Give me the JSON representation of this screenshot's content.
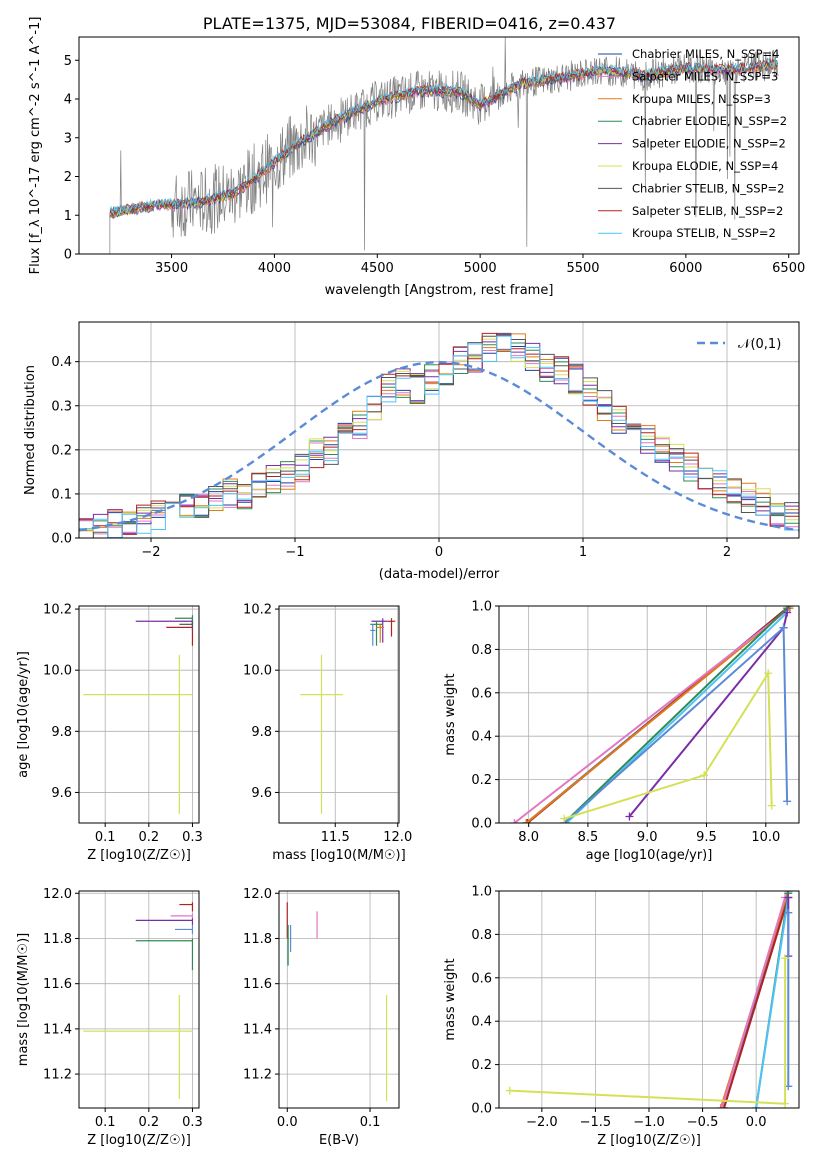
{
  "page_title": "PLATE=1375, MJD=53084, FIBERID=0416, z=0.437",
  "legend_models": [
    {
      "name": "Chabrier MILES, N_SSP=4",
      "color": "#1f3fa0"
    },
    {
      "name": "Salpeter MILES, N_SSP=3",
      "color": "#e377c2"
    },
    {
      "name": "Kroupa MILES, N_SSP=3",
      "color": "#e07b1a"
    },
    {
      "name": "Chabrier ELODIE, N_SSP=2",
      "color": "#2e8b57"
    },
    {
      "name": "Salpeter ELODIE, N_SSP=2",
      "color": "#7b2da6"
    },
    {
      "name": "Kroupa ELODIE, N_SSP=4",
      "color": "#d4e157"
    },
    {
      "name": "Chabrier STELIB, N_SSP=2",
      "color": "#555555"
    },
    {
      "name": "Salpeter STELIB, N_SSP=2",
      "color": "#b22222"
    },
    {
      "name": "Kroupa STELIB, N_SSP=2",
      "color": "#4fc3f7"
    }
  ],
  "chart_data": [
    {
      "id": "spectrum",
      "type": "line",
      "title": "PLATE=1375, MJD=53084, FIBERID=0416, z=0.437",
      "xlabel": "wavelength [Angstrom, rest frame]",
      "ylabel": "Flux [f_λ 10^-17 erg cm^-2 s^-1 A^-1]",
      "xlim": [
        3050,
        6550
      ],
      "ylim": [
        0,
        5.6
      ],
      "xticks": [
        "3500",
        "4000",
        "4500",
        "5000",
        "5500",
        "6000",
        "6500"
      ],
      "yticks": [
        "0",
        "1",
        "2",
        "3",
        "4",
        "5"
      ],
      "data_color": "#808080",
      "model_envelope": {
        "x": [
          3200,
          3400,
          3550,
          3650,
          3800,
          3950,
          4100,
          4300,
          4500,
          4700,
          4900,
          5000,
          5200,
          5400,
          5600,
          5800,
          6000,
          6200,
          6450
        ],
        "y": [
          1.05,
          1.25,
          1.3,
          1.35,
          1.55,
          2.15,
          2.8,
          3.45,
          3.95,
          4.2,
          4.2,
          3.85,
          4.4,
          4.55,
          4.75,
          4.6,
          4.8,
          4.75,
          4.9
        ]
      },
      "grid": false,
      "legend": "top-right"
    },
    {
      "id": "residuals",
      "type": "histogram",
      "xlabel": "(data-model)/error",
      "ylabel": "Normed distribution",
      "xlim": [
        -2.5,
        2.5
      ],
      "ylim": [
        0,
        0.49
      ],
      "xticks": [
        "−2",
        "−1",
        "0",
        "1",
        "2"
      ],
      "yticks": [
        "0.0",
        "0.1",
        "0.2",
        "0.3",
        "0.4"
      ],
      "bin_width": 0.1,
      "bin_start": -2.5,
      "base_heights": [
        0.01,
        0.02,
        0.03,
        0.04,
        0.04,
        0.05,
        0.06,
        0.07,
        0.08,
        0.09,
        0.1,
        0.1,
        0.12,
        0.13,
        0.14,
        0.16,
        0.19,
        0.2,
        0.23,
        0.26,
        0.3,
        0.34,
        0.35,
        0.34,
        0.36,
        0.37,
        0.4,
        0.41,
        0.43,
        0.44,
        0.43,
        0.41,
        0.39,
        0.38,
        0.36,
        0.33,
        0.3,
        0.27,
        0.25,
        0.22,
        0.2,
        0.18,
        0.16,
        0.14,
        0.12,
        0.1,
        0.09,
        0.08,
        0.06,
        0.05
      ],
      "reference_curve": {
        "name": "𝒩(0,1)",
        "color": "#5b8bd6",
        "style": "dashed"
      },
      "grid": true,
      "legend": "top-right"
    },
    {
      "id": "age-vs-Z",
      "type": "errorbar",
      "xlabel": "Z [log10(Z/Z☉)]",
      "ylabel": "age [log10(age/yr)]",
      "xlim": [
        0.04,
        0.315
      ],
      "ylim": [
        9.5,
        10.21
      ],
      "xticks": [
        "0.1",
        "0.2",
        "0.3"
      ],
      "xtick_values": [
        0.1,
        0.2,
        0.3
      ],
      "yticks": [
        "9.6",
        "9.8",
        "10.0",
        "10.2"
      ],
      "ytick_values": [
        9.6,
        9.8,
        10.0,
        10.2
      ],
      "points": [
        {
          "x": 0.27,
          "y": 9.92,
          "xerr": [
            0.22,
            0.03
          ],
          "yerr": [
            0.39,
            0.13
          ],
          "color": "#d4e157"
        },
        {
          "x": 0.3,
          "y": 10.16,
          "xerr": [
            0.13,
            0.0
          ],
          "yerr": [
            0.01,
            0.01
          ],
          "color": "#7b2da6"
        },
        {
          "x": 0.3,
          "y": 10.14,
          "xerr": [
            0.06,
            0.0
          ],
          "yerr": [
            0.06,
            0.02
          ],
          "color": "#b22222"
        },
        {
          "x": 0.3,
          "y": 10.17,
          "xerr": [
            0.04,
            0.0
          ],
          "yerr": [
            0.02,
            0.01
          ],
          "color": "#2e8b57"
        },
        {
          "x": 0.3,
          "y": 10.15,
          "xerr": [
            0.03,
            0.0
          ],
          "yerr": [
            0.02,
            0.01
          ],
          "color": "#555555"
        }
      ]
    },
    {
      "id": "age-vs-mass",
      "type": "errorbar",
      "xlabel": "mass [log10(M/M☉)]",
      "ylabel": "",
      "xlim": [
        11.05,
        12.01
      ],
      "ylim": [
        9.5,
        10.21
      ],
      "xticks": [
        "11.5",
        "12.0"
      ],
      "xtick_values": [
        11.5,
        12.0
      ],
      "yticks": [
        "9.6",
        "9.8",
        "10.0",
        "10.2"
      ],
      "ytick_values": [
        9.6,
        9.8,
        10.0,
        10.2
      ],
      "points": [
        {
          "x": 11.39,
          "y": 9.92,
          "xerr": [
            0.17,
            0.17
          ],
          "yerr": [
            0.39,
            0.13
          ],
          "color": "#d4e157"
        },
        {
          "x": 11.88,
          "y": 10.16,
          "xerr": [
            0.09,
            0.04
          ],
          "yerr": [
            0.07,
            0.01
          ],
          "color": "#7b2da6"
        },
        {
          "x": 11.95,
          "y": 10.16,
          "xerr": [
            0.03,
            0.03
          ],
          "yerr": [
            0.05,
            0.01
          ],
          "color": "#b22222"
        },
        {
          "x": 11.83,
          "y": 10.15,
          "xerr": [
            0.05,
            0.05
          ],
          "yerr": [
            0.07,
            0.01
          ],
          "color": "#2e8b57"
        },
        {
          "x": 11.86,
          "y": 10.14,
          "xerr": [
            0.03,
            0.03
          ],
          "yerr": [
            0.05,
            0.01
          ],
          "color": "#e07b1a"
        },
        {
          "x": 11.8,
          "y": 10.13,
          "xerr": [
            0.02,
            0.02
          ],
          "yerr": [
            0.05,
            0.02
          ],
          "color": "#5b8bd6"
        }
      ]
    },
    {
      "id": "weight-vs-age",
      "type": "line",
      "xlabel": "age [log10(age/yr)]",
      "ylabel": "mass weight",
      "xlim": [
        7.75,
        10.28
      ],
      "ylim": [
        0,
        1.0
      ],
      "xticks": [
        "8.0",
        "8.5",
        "9.0",
        "9.5",
        "10.0"
      ],
      "xtick_values": [
        8.0,
        8.5,
        9.0,
        9.5,
        10.0
      ],
      "yticks": [
        "0.0",
        "0.2",
        "0.4",
        "0.6",
        "0.8",
        "1.0"
      ],
      "ytick_values": [
        0.0,
        0.2,
        0.4,
        0.6,
        0.8,
        1.0
      ],
      "series": [
        {
          "color": "#1f77b4",
          "x": [
            7.98,
            10.2
          ],
          "y": [
            0.0,
            1.0
          ]
        },
        {
          "color": "#b22222",
          "x": [
            7.99,
            10.2
          ],
          "y": [
            0.0,
            1.0
          ]
        },
        {
          "color": "#e07b1a",
          "x": [
            7.98,
            10.2
          ],
          "y": [
            0.0,
            0.99
          ]
        },
        {
          "color": "#e377c2",
          "x": [
            7.88,
            10.18
          ],
          "y": [
            0.0,
            0.98
          ]
        },
        {
          "color": "#2e8b57",
          "x": [
            8.3,
            10.18
          ],
          "y": [
            0.0,
            0.99
          ]
        },
        {
          "color": "#4fc3f7",
          "x": [
            8.32,
            10.18
          ],
          "y": [
            0.0,
            0.97
          ]
        },
        {
          "color": "#7b2da6",
          "x": [
            8.85,
            10.15,
            10.18
          ],
          "y": [
            0.03,
            0.9,
            0.97
          ]
        },
        {
          "color": "#5b8bd6",
          "x": [
            8.3,
            10.15,
            10.18
          ],
          "y": [
            0.0,
            0.9,
            0.1
          ]
        },
        {
          "color": "#d4e157",
          "x": [
            8.3,
            9.48,
            10.02,
            10.05
          ],
          "y": [
            0.02,
            0.22,
            0.69,
            0.08
          ]
        }
      ]
    },
    {
      "id": "mass-vs-Z",
      "type": "errorbar",
      "xlabel": "Z [log10(Z/Z☉)]",
      "ylabel": "mass [log10(M/M☉)]",
      "xlim": [
        0.04,
        0.315
      ],
      "ylim": [
        11.05,
        12.01
      ],
      "xticks": [
        "0.1",
        "0.2",
        "0.3"
      ],
      "xtick_values": [
        0.1,
        0.2,
        0.3
      ],
      "yticks": [
        "11.2",
        "11.4",
        "11.6",
        "11.8",
        "12.0"
      ],
      "ytick_values": [
        11.2,
        11.4,
        11.6,
        11.8,
        12.0
      ],
      "points": [
        {
          "x": 0.27,
          "y": 11.39,
          "xerr": [
            0.22,
            0.03
          ],
          "yerr": [
            0.3,
            0.16
          ],
          "color": "#d4e157"
        },
        {
          "x": 0.3,
          "y": 11.88,
          "xerr": [
            0.13,
            0.0
          ],
          "yerr": [
            0.02,
            0.01
          ],
          "color": "#7b2da6"
        },
        {
          "x": 0.3,
          "y": 11.95,
          "xerr": [
            0.03,
            0.0
          ],
          "yerr": [
            0.03,
            0.01
          ],
          "color": "#b22222"
        },
        {
          "x": 0.3,
          "y": 11.79,
          "xerr": [
            0.13,
            0.0
          ],
          "yerr": [
            0.13,
            0.01
          ],
          "color": "#2e8b57"
        },
        {
          "x": 0.3,
          "y": 11.84,
          "xerr": [
            0.04,
            0.0
          ],
          "yerr": [
            0.02,
            0.02
          ],
          "color": "#5b8bd6"
        },
        {
          "x": 0.3,
          "y": 11.9,
          "xerr": [
            0.05,
            0.0
          ],
          "yerr": [
            0.01,
            0.01
          ],
          "color": "#e377c2"
        }
      ]
    },
    {
      "id": "mass-vs-EBV",
      "type": "errorbar",
      "xlabel": "E(B-V)",
      "ylabel": "",
      "xlim": [
        -0.01,
        0.135
      ],
      "ylim": [
        11.05,
        12.01
      ],
      "xticks": [
        "0.0",
        "0.1"
      ],
      "xtick_values": [
        0.0,
        0.1
      ],
      "yticks": [
        "11.2",
        "11.4",
        "11.6",
        "11.8",
        "12.0"
      ],
      "ytick_values": [
        11.2,
        11.4,
        11.6,
        11.8,
        12.0
      ],
      "points": [
        {
          "x": 0.12,
          "y": 11.3,
          "xerr": [
            0,
            0
          ],
          "yerr": [
            0.22,
            0.25
          ],
          "color": "#d4e157"
        },
        {
          "x": 0.0,
          "y": 11.88,
          "xerr": [
            0,
            0
          ],
          "yerr": [
            0.08,
            0.08
          ],
          "color": "#b22222"
        },
        {
          "x": 0.001,
          "y": 11.8,
          "xerr": [
            0,
            0
          ],
          "yerr": [
            0.12,
            0.06
          ],
          "color": "#2e8b57"
        },
        {
          "x": 0.004,
          "y": 11.8,
          "xerr": [
            0,
            0
          ],
          "yerr": [
            0.06,
            0.06
          ],
          "color": "#5b8bd6"
        },
        {
          "x": 0.036,
          "y": 11.86,
          "xerr": [
            0,
            0
          ],
          "yerr": [
            0.06,
            0.06
          ],
          "color": "#e377c2"
        }
      ]
    },
    {
      "id": "weight-vs-Z",
      "type": "line",
      "xlabel": "Z [log10(Z/Z☉)]",
      "ylabel": "mass weight",
      "xlim": [
        -2.4,
        0.4
      ],
      "ylim": [
        0,
        1.0
      ],
      "xticks": [
        "−2.0",
        "−1.5",
        "−1.0",
        "−0.5",
        "0.0"
      ],
      "xtick_values": [
        -2.0,
        -1.5,
        -1.0,
        -0.5,
        0.0
      ],
      "yticks": [
        "0.0",
        "0.2",
        "0.4",
        "0.6",
        "0.8",
        "1.0"
      ],
      "ytick_values": [
        0.0,
        0.2,
        0.4,
        0.6,
        0.8,
        1.0
      ],
      "series": [
        {
          "color": "#1f77b4",
          "x": [
            -0.3,
            0.3
          ],
          "y": [
            0.0,
            1.0
          ]
        },
        {
          "color": "#e07b1a",
          "x": [
            -0.33,
            0.3
          ],
          "y": [
            0.0,
            1.0
          ]
        },
        {
          "color": "#b22222",
          "x": [
            -0.3,
            0.3
          ],
          "y": [
            0.0,
            0.97
          ]
        },
        {
          "color": "#e377c2",
          "x": [
            -0.32,
            0.27
          ],
          "y": [
            0.0,
            0.97
          ]
        },
        {
          "color": "#2e8b57",
          "x": [
            0.0,
            0.3
          ],
          "y": [
            0.0,
            0.99
          ]
        },
        {
          "color": "#4fc3f7",
          "x": [
            0.0,
            0.3
          ],
          "y": [
            0.0,
            0.97
          ]
        },
        {
          "color": "#7b2da6",
          "x": [
            0.3,
            0.3
          ],
          "y": [
            0.7,
            0.97
          ]
        },
        {
          "color": "#5b8bd6",
          "x": [
            0.3,
            0.3
          ],
          "y": [
            0.1,
            0.9
          ]
        },
        {
          "color": "#d4e157",
          "x": [
            -2.3,
            0.27,
            0.27
          ],
          "y": [
            0.08,
            0.02,
            0.69
          ]
        }
      ]
    }
  ]
}
